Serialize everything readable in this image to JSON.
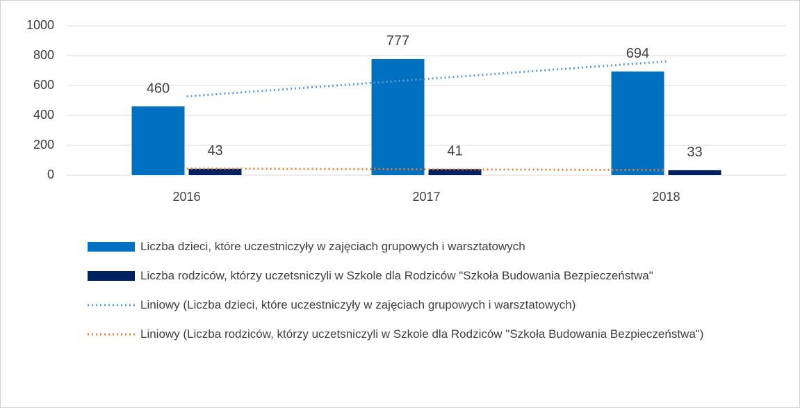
{
  "chart_data": {
    "type": "bar",
    "categories": [
      "2016",
      "2017",
      "2018"
    ],
    "series": [
      {
        "name": "Liczba dzieci, które uczestniczyły w zajęciach grupowych i warsztatowych",
        "color": "#0070c0",
        "type": "bar",
        "values": [
          460,
          777,
          694
        ]
      },
      {
        "name": "Liczba rodziców, którzy uczetsniczyli w Szkole dla Rodziców \"Szkoła Budowania Bezpieczeństwa\"",
        "color": "#002060",
        "type": "bar",
        "values": [
          43,
          41,
          33
        ]
      },
      {
        "name": "Liniowy (Liczba dzieci, które uczestniczyły w zajęciach grupowych i warsztatowych)",
        "color": "#5b9bd5",
        "type": "line",
        "dash": "dotted",
        "values": [
          527,
          644,
          761
        ]
      },
      {
        "name": "Liniowy (Liczba rodziców, którzy uczetsniczyli w Szkole dla Rodziców \"Szkoła Budowania Bezpieczeństwa\")",
        "color": "#ed7d31",
        "type": "line",
        "dash": "dotted",
        "values": [
          44,
          39,
          34
        ]
      }
    ],
    "ylim": [
      0,
      1000
    ],
    "yticks": [
      0,
      200,
      400,
      600,
      800,
      1000
    ],
    "grid": true,
    "legend": "bottom"
  }
}
